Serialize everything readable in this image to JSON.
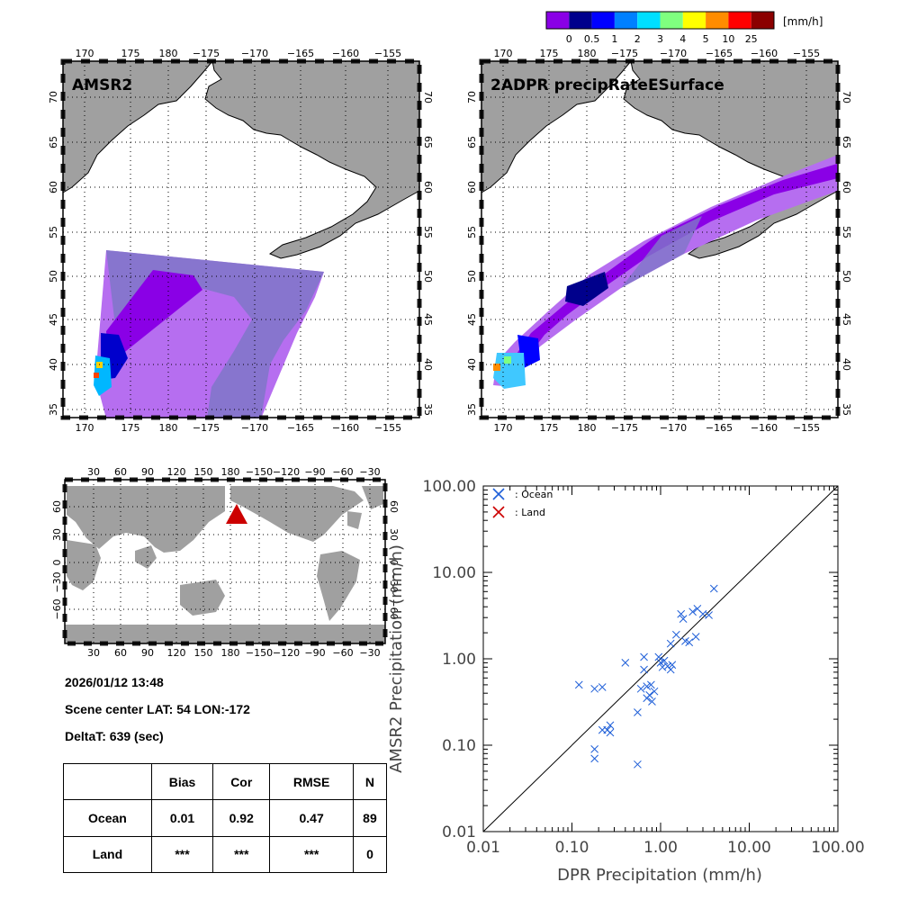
{
  "colorbar": {
    "unit": "[mm/h]",
    "labels": [
      "0",
      "0.5",
      "1",
      "2",
      "3",
      "4",
      "5",
      "10",
      "25"
    ],
    "colors": [
      "#8a00e6",
      "#00008c",
      "#0000ff",
      "#0080ff",
      "#00dfff",
      "#7fff7f",
      "#ffff00",
      "#ff8c00",
      "#ff0000",
      "#8b0000"
    ]
  },
  "map_left": {
    "title": "AMSR2",
    "lon_ticks": [
      "170",
      "175",
      "180",
      "−175",
      "−170",
      "−165",
      "−160",
      "−155"
    ],
    "lat_ticks": [
      "35",
      "40",
      "45",
      "50",
      "55",
      "60",
      "65",
      "70"
    ]
  },
  "map_right": {
    "title": "2ADPR precipRateESurface",
    "lon_ticks": [
      "170",
      "175",
      "180",
      "−175",
      "−170",
      "−165",
      "−160",
      "−155"
    ],
    "lat_ticks": [
      "35",
      "40",
      "45",
      "50",
      "55",
      "60",
      "65",
      "70"
    ]
  },
  "world_map": {
    "lon_ticks": [
      "30",
      "60",
      "90",
      "120",
      "150",
      "180",
      "−150",
      "−120",
      "−90",
      "−60",
      "−30"
    ],
    "lat_ticks": [
      "−60",
      "−30",
      "0",
      "30",
      "60"
    ],
    "marker_color": "#cc0000"
  },
  "info": {
    "datetime": "2026/01/12 13:48",
    "center": "Scene center LAT: 54   LON:-172",
    "delta": "DeltaT:  639 (sec)"
  },
  "stats_table": {
    "headers": [
      "",
      "Bias",
      "Cor",
      "RMSE",
      "N"
    ],
    "rows": [
      [
        "Ocean",
        "0.01",
        "0.92",
        "0.47",
        "89"
      ],
      [
        "Land",
        "***",
        "***",
        "***",
        "0"
      ]
    ]
  },
  "chart_data": {
    "type": "scatter",
    "xlabel": "DPR Precipitation (mm/h)",
    "ylabel": "AMSR2 Precipitation (mm/h)",
    "xscale": "log",
    "yscale": "log",
    "xlim": [
      0.01,
      100
    ],
    "ylim": [
      0.01,
      100
    ],
    "x_tick_labels": [
      "0.01",
      "0.10",
      "1.00",
      "10.00",
      "100.00"
    ],
    "y_tick_labels": [
      "0.01",
      "0.10",
      "1.00",
      "10.00",
      "100.00"
    ],
    "legend": [
      {
        "label": ": Ocean",
        "color": "#1f5fd8"
      },
      {
        "label": ": Land",
        "color": "#cc0000"
      }
    ],
    "series": [
      {
        "name": "Ocean",
        "color": "#1f5fd8",
        "points": [
          [
            0.12,
            0.5
          ],
          [
            0.18,
            0.45
          ],
          [
            0.22,
            0.47
          ],
          [
            0.4,
            0.9
          ],
          [
            0.22,
            0.15
          ],
          [
            0.25,
            0.15
          ],
          [
            0.27,
            0.17
          ],
          [
            0.27,
            0.14
          ],
          [
            0.18,
            0.09
          ],
          [
            0.18,
            0.07
          ],
          [
            0.55,
            0.06
          ],
          [
            0.55,
            0.24
          ],
          [
            0.6,
            0.45
          ],
          [
            0.65,
            0.75
          ],
          [
            0.65,
            1.05
          ],
          [
            0.7,
            0.35
          ],
          [
            0.75,
            0.38
          ],
          [
            0.78,
            0.5
          ],
          [
            0.8,
            0.32
          ],
          [
            0.95,
            1.05
          ],
          [
            1.0,
            0.9
          ],
          [
            1.05,
            0.8
          ],
          [
            1.1,
            0.95
          ],
          [
            1.2,
            0.82
          ],
          [
            1.3,
            1.5
          ],
          [
            1.3,
            0.75
          ],
          [
            1.35,
            0.85
          ],
          [
            1.5,
            1.9
          ],
          [
            1.7,
            3.3
          ],
          [
            1.8,
            2.9
          ],
          [
            1.9,
            1.6
          ],
          [
            2.1,
            1.55
          ],
          [
            2.3,
            3.5
          ],
          [
            2.5,
            1.8
          ],
          [
            2.6,
            3.8
          ],
          [
            3.0,
            3.3
          ],
          [
            3.5,
            3.2
          ],
          [
            4.0,
            6.5
          ],
          [
            0.85,
            0.42
          ],
          [
            0.7,
            0.48
          ]
        ]
      },
      {
        "name": "Land",
        "color": "#cc0000",
        "points": []
      }
    ]
  }
}
